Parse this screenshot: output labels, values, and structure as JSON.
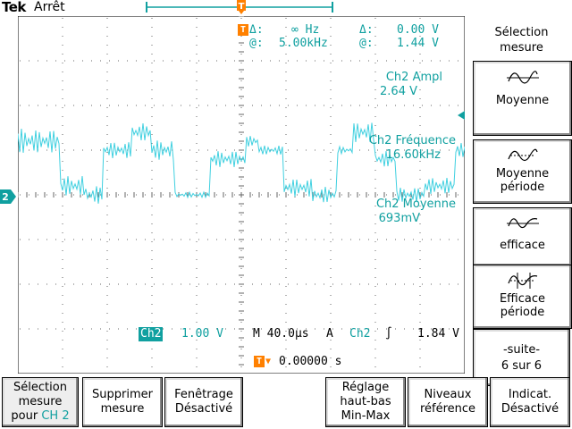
{
  "status": {
    "brand": "Tek",
    "state": "Arrêt"
  },
  "cursors": {
    "row1": {
      "delta_label": "Δ:",
      "freq": "∞ Hz",
      "delta2_label": "Δ:",
      "volt": "0.00 V"
    },
    "row2": {
      "at_label": "@:",
      "freq": "5.00kHz",
      "at2_label": "@:",
      "volt": "1.44 V"
    }
  },
  "measurements": [
    {
      "label": "Ch2 Ampl",
      "value": "2.64 V"
    },
    {
      "label": "Ch2 Fréquence",
      "value": "16.60kHz"
    },
    {
      "label": "Ch2 Moyenne",
      "value": "693mV"
    }
  ],
  "channel_marker": "2",
  "scale": {
    "channel": "Ch2",
    "volts_div": "1.00 V",
    "timebase": "M 40.0µs",
    "trigger_mode": "A",
    "trigger_source": "Ch2",
    "trigger_slope": "∫",
    "trigger_level": "1.84 V",
    "position": "0.00000 s"
  },
  "side_menu": {
    "title_line1": "Sélection",
    "title_line2": "mesure",
    "items": [
      {
        "label": "Moyenne",
        "label2": ""
      },
      {
        "label": "Moyenne",
        "label2": "période"
      },
      {
        "label": "efficace",
        "label2": ""
      },
      {
        "label": "Efficace",
        "label2": "période"
      },
      {
        "label": "-suite-",
        "label2": "6 sur 6"
      }
    ]
  },
  "bottom_menu": [
    {
      "line1": "Sélection",
      "line2": "mesure",
      "line3": "pour",
      "ch": "CH 2"
    },
    {
      "line1": "Supprimer",
      "line2": "mesure",
      "line3": ""
    },
    {
      "line1": "Fenêtrage",
      "line2": "Désactivé",
      "line3": ""
    },
    {
      "line1": "Réglage",
      "line2": "haut-bas",
      "line3": "Min-Max"
    },
    {
      "line1": "Niveaux",
      "line2": "référence",
      "line3": ""
    },
    {
      "line1": "Indicat.",
      "line2": "Désactivé",
      "line3": ""
    }
  ],
  "colors": {
    "trace": "#40d0e0",
    "text": "#10a0a0",
    "marker": "#ff8000"
  }
}
